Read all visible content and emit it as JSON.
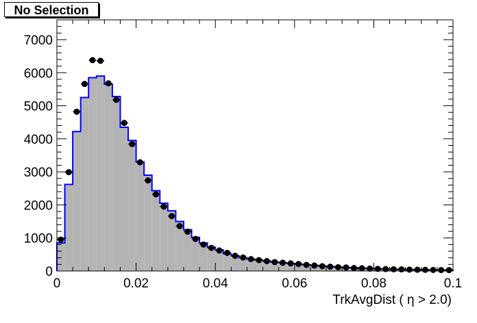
{
  "chart_data": {
    "type": "histogram",
    "title": "No Selection",
    "xlabel": "TrkAvgDist ( η > 2.0)",
    "ylabel": "",
    "xlim": [
      0,
      0.1
    ],
    "ylim": [
      0,
      7600
    ],
    "x_ticks": [
      "0",
      "0.02",
      "0.04",
      "0.06",
      "0.08",
      "0.1"
    ],
    "y_ticks": [
      "0",
      "1000",
      "2000",
      "3000",
      "4000",
      "5000",
      "6000",
      "7000"
    ],
    "bin_width": 0.002,
    "series": [
      {
        "style": "filled-step",
        "fill_color": "#b4b4b4",
        "line_color": "#0000ff",
        "values": [
          850,
          2620,
          4220,
          5250,
          5850,
          5900,
          5650,
          5280,
          4350,
          3950,
          3300,
          2900,
          2430,
          2050,
          1820,
          1500,
          1250,
          1020,
          850,
          720,
          640,
          520,
          460,
          400,
          360,
          330,
          300,
          270,
          250,
          230,
          210,
          190,
          170,
          150,
          135,
          120,
          108,
          95,
          85,
          75,
          68,
          60,
          55,
          50,
          45,
          40,
          36,
          32,
          30,
          28
        ]
      },
      {
        "style": "markers",
        "marker_color": "#000000",
        "values": [
          950,
          2990,
          4820,
          5660,
          6380,
          6360,
          5680,
          5180,
          4480,
          3840,
          3290,
          2740,
          2320,
          1950,
          1660,
          1360,
          1190,
          970,
          800,
          700,
          620,
          550,
          460,
          410,
          360,
          330,
          300,
          270,
          250,
          230,
          210,
          185,
          165,
          145,
          130,
          115,
          105,
          90,
          82,
          72,
          65,
          58,
          52,
          48,
          42,
          38,
          35,
          32,
          29,
          27
        ]
      }
    ]
  }
}
